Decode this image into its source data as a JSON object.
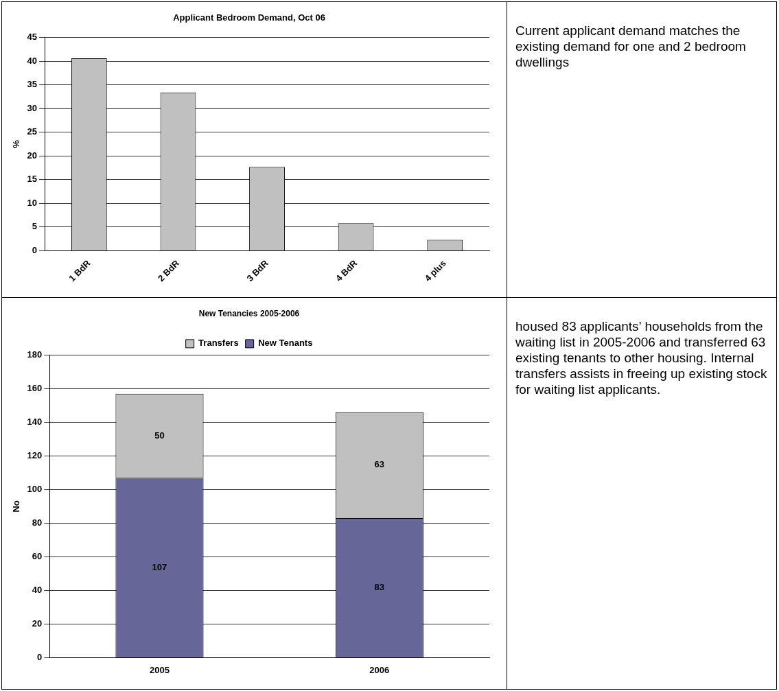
{
  "chart_data": [
    {
      "type": "bar",
      "title": "Applicant Bedroom Demand, Oct 06",
      "ylabel": "%",
      "categories": [
        "1 BdR",
        "2 BdR",
        "3 BdR",
        "4 BdR",
        "4 plus"
      ],
      "values": [
        40.6,
        33.4,
        17.7,
        5.8,
        2.3
      ],
      "color": "#c0c0c0",
      "ylim": [
        0,
        45
      ],
      "yticks": [
        0,
        5,
        10,
        15,
        20,
        25,
        30,
        35,
        40,
        45
      ],
      "grid": "y",
      "legend": false
    },
    {
      "type": "other",
      "annotations": [
        "Current applicant demand matches the existing demand for one and 2 bedroom dwellings"
      ]
    },
    {
      "type": "bar",
      "title": "New Tenancies 2005-2006",
      "ylabel": "No",
      "categories": [
        "2005",
        "2006"
      ],
      "stacked": true,
      "series": [
        {
          "name": "New Tenants",
          "color": "#666699",
          "values": [
            107,
            83
          ]
        },
        {
          "name": "Transfers",
          "color": "#c0c0c0",
          "values": [
            50,
            63
          ]
        }
      ],
      "ylim": [
        0,
        180
      ],
      "yticks": [
        0,
        20,
        40,
        60,
        80,
        100,
        120,
        140,
        160,
        180
      ],
      "grid": "y",
      "legend": "top",
      "data_labels": true
    },
    {
      "type": "other",
      "annotations": [
        "housed 83 applicants’ households from the waiting list in 2005-2006 and transferred 63 existing tenants to other housing. Internal transfers assists in freeing up existing stock for waiting list applicants."
      ]
    }
  ]
}
